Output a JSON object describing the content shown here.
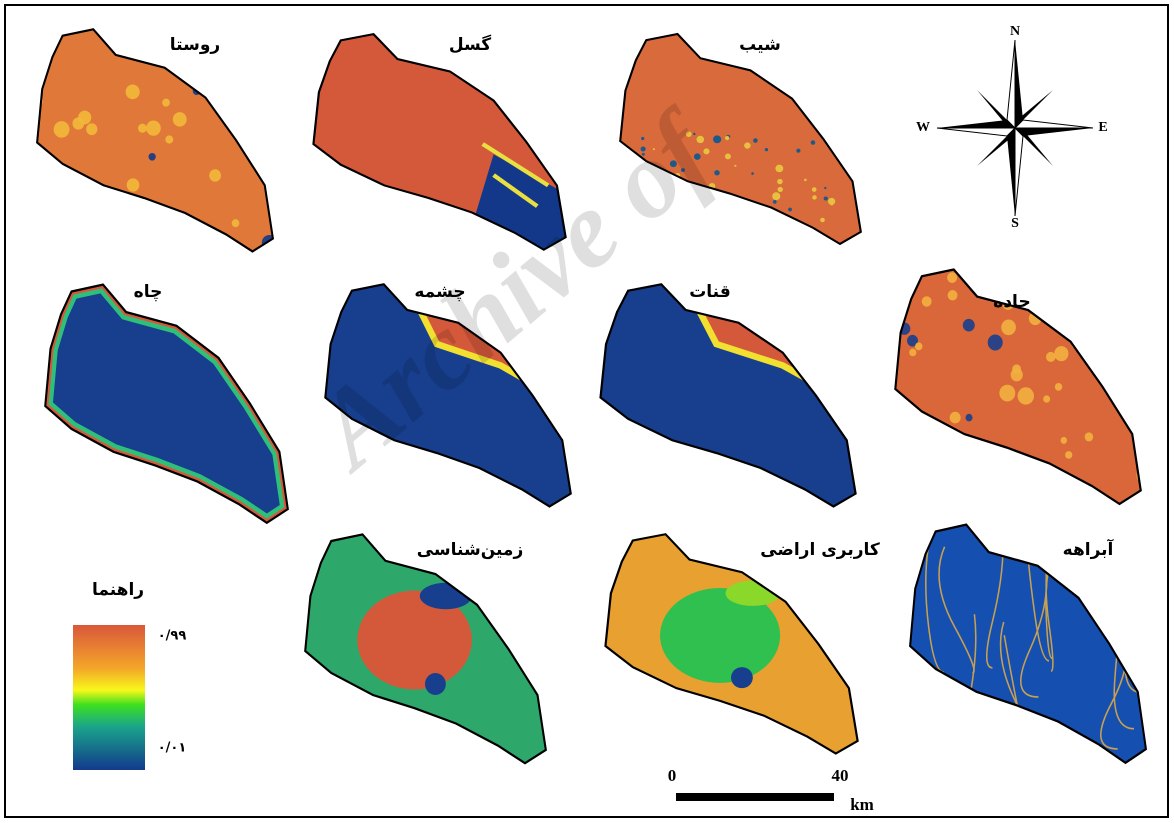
{
  "panels": [
    {
      "title": "روستا"
    },
    {
      "title": "گسل"
    },
    {
      "title": "شیب"
    },
    {
      "title": "چاه"
    },
    {
      "title": "چشمه"
    },
    {
      "title": "قنات"
    },
    {
      "title": "جاده"
    },
    {
      "title": "زمین‌شناسی"
    },
    {
      "title": "کاربری اراضی"
    },
    {
      "title": "آبراهه"
    }
  ],
  "compass": {
    "north": "N",
    "east": "E",
    "south": "S",
    "west": "W"
  },
  "legend": {
    "title": "راهنما",
    "high": "۰/۹۹",
    "low": "۰/۰۱"
  },
  "scale_bar": {
    "start": "0",
    "end": "40",
    "unit": "km"
  },
  "watermark": "Archive of"
}
